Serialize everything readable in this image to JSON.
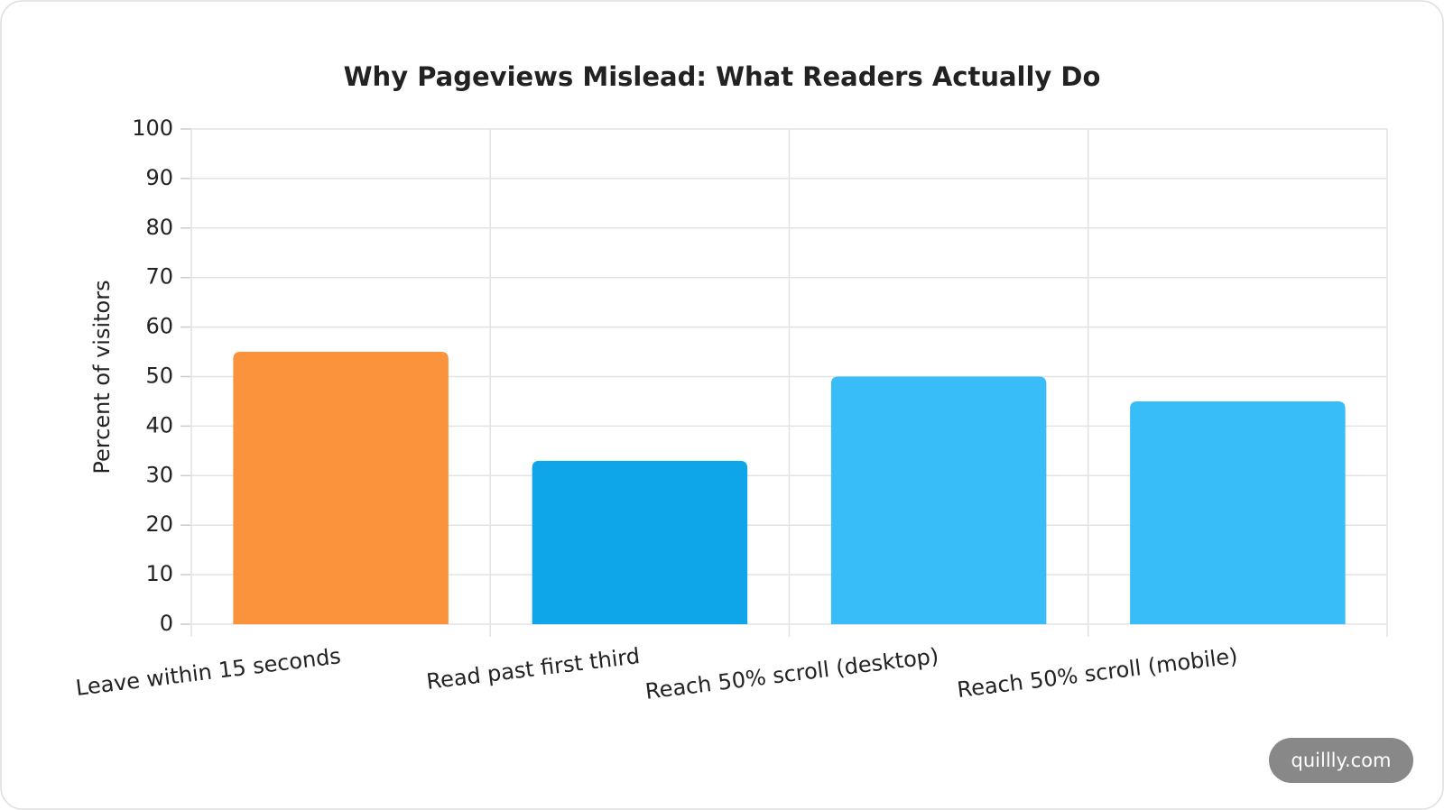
{
  "chart_data": {
    "type": "bar",
    "title": "Why Pageviews Mislead: What Readers Actually Do",
    "y_label": "Percent of visitors",
    "categories": [
      "Leave within 15 seconds",
      "Read past first third",
      "Reach 50% scroll (desktop)",
      "Reach 50% scroll (mobile)"
    ],
    "values": [
      55,
      33,
      50,
      45
    ],
    "colors": [
      "#fb923c",
      "#0ea5e9",
      "#38bdf8",
      "#38bdf8"
    ],
    "ylim": [
      0,
      100
    ],
    "yticks": [
      0,
      10,
      20,
      30,
      40,
      50,
      60,
      70,
      80,
      90,
      100
    ],
    "grid": true
  },
  "watermark": "quillly.com"
}
